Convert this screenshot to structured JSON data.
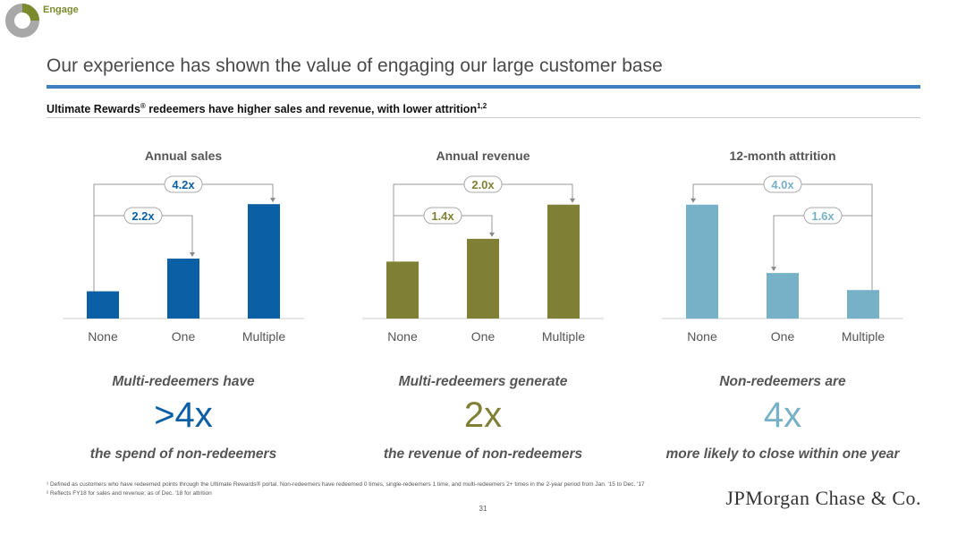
{
  "header": {
    "section_label": "Engage",
    "title": "Our experience has shown the value of engaging our large customer base",
    "subtitle": "Ultimate Rewards",
    "subtitle_mark": "®",
    "subtitle_rest": " redeemers have higher sales and revenue, with lower attrition",
    "subtitle_sup": "1,2"
  },
  "colors": {
    "sales": "#0b5fa5",
    "revenue": "#7f8035",
    "attrition": "#77b1c8",
    "title_rule": "#3d7fc1",
    "engage": "#7c8a2e"
  },
  "chart_data": [
    {
      "type": "bar",
      "title": "Annual sales",
      "categories": [
        "None",
        "One",
        "Multiple"
      ],
      "values": [
        1.0,
        2.2,
        4.2
      ],
      "ylim": [
        0,
        4.6
      ],
      "annotations": [
        {
          "label": "2.2x",
          "from": 0,
          "to": 1
        },
        {
          "label": "4.2x",
          "from": 0,
          "to": 2
        }
      ]
    },
    {
      "type": "bar",
      "title": "Annual revenue",
      "categories": [
        "None",
        "One",
        "Multiple"
      ],
      "values": [
        1.0,
        1.4,
        2.0
      ],
      "ylim": [
        0,
        2.2
      ],
      "annotations": [
        {
          "label": "1.4x",
          "from": 0,
          "to": 1
        },
        {
          "label": "2.0x",
          "from": 0,
          "to": 2
        }
      ]
    },
    {
      "type": "bar",
      "title": "12-month attrition",
      "categories": [
        "None",
        "One",
        "Multiple"
      ],
      "values": [
        4.0,
        1.6,
        1.0
      ],
      "ylim": [
        0,
        4.4
      ],
      "annotations": [
        {
          "label": "1.6x",
          "from": 2,
          "to": 1
        },
        {
          "label": "4.0x",
          "from": 2,
          "to": 0
        }
      ]
    }
  ],
  "statements": [
    {
      "top": "Multi-redeemers have",
      "big": ">4x",
      "bottom": "the spend of non-redeemers"
    },
    {
      "top": "Multi-redeemers generate",
      "big": "2x",
      "bottom": "the revenue of non-redeemers"
    },
    {
      "top": "Non-redeemers are",
      "big": "4x",
      "bottom": "more likely to close within one year"
    }
  ],
  "footnotes": {
    "note1": "¹ Defined as customers who have redeemed points through the Ultimate Rewards® portal. Non-redeemers have redeemed 0 times, single-redeemers 1 time, and multi-redeemers 2+ times in the 2-year period from Jan. '15 to Dec. '17",
    "note2": "² Reflects FY18 for sales and revenue; as of Dec. '18 for attrition"
  },
  "page_number": "31",
  "logo": "JPMorgan Chase & Co."
}
